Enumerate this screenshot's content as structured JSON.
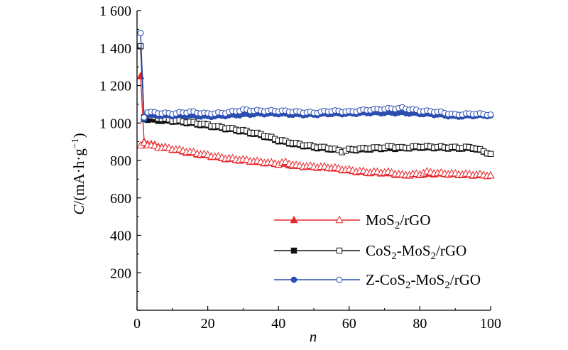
{
  "chart_data": {
    "type": "line",
    "xlabel": "n",
    "ylabel": "C/(mA·h·g⁻¹)",
    "xlim": [
      0,
      100
    ],
    "ylim": [
      0,
      1600
    ],
    "x_ticks": [
      "0",
      "20",
      "40",
      "60",
      "80",
      "100"
    ],
    "y_ticks": [
      "",
      "200",
      "400",
      "600",
      "800",
      "1 000",
      "1 200",
      "1 400",
      "1 600"
    ],
    "grid": false,
    "legend_position": "lower-right",
    "series": [
      {
        "name": "MoS2/rGO",
        "legend_main": "MoS",
        "legend_sub": "2",
        "legend_rest": "/rGO",
        "color": "#e8262b",
        "marker": "triangle",
        "discharge": [
          [
            1,
            1250
          ],
          [
            2,
            900
          ],
          [
            3,
            890
          ],
          [
            5,
            880
          ],
          [
            10,
            860
          ],
          [
            15,
            840
          ],
          [
            20,
            825
          ],
          [
            25,
            810
          ],
          [
            30,
            800
          ],
          [
            35,
            790
          ],
          [
            40,
            780
          ],
          [
            42,
            780
          ],
          [
            45,
            770
          ],
          [
            50,
            765
          ],
          [
            55,
            760
          ],
          [
            60,
            745
          ],
          [
            65,
            735
          ],
          [
            70,
            733
          ],
          [
            72,
            730
          ],
          [
            75,
            720
          ],
          [
            80,
            725
          ],
          [
            85,
            730
          ],
          [
            90,
            725
          ],
          [
            95,
            722
          ],
          [
            100,
            720
          ]
        ],
        "charge": [
          [
            1,
            880
          ],
          [
            2,
            895
          ],
          [
            3,
            885
          ],
          [
            5,
            875
          ],
          [
            10,
            862
          ],
          [
            15,
            845
          ],
          [
            20,
            828
          ],
          [
            25,
            812
          ],
          [
            30,
            803
          ],
          [
            35,
            792
          ],
          [
            40,
            782
          ],
          [
            42,
            790
          ],
          [
            45,
            772
          ],
          [
            50,
            767
          ],
          [
            55,
            762
          ],
          [
            60,
            748
          ],
          [
            65,
            738
          ],
          [
            70,
            737
          ],
          [
            72,
            735
          ],
          [
            75,
            722
          ],
          [
            80,
            728
          ],
          [
            82,
            738
          ],
          [
            85,
            732
          ],
          [
            90,
            728
          ],
          [
            95,
            725
          ],
          [
            100,
            720
          ]
        ]
      },
      {
        "name": "CoS2-MoS2/rGO",
        "legend_parts": [
          "CoS",
          "2",
          "-MoS",
          "2",
          "/rGO"
        ],
        "color": "#111111",
        "marker": "square",
        "discharge": [
          [
            1,
            1410
          ],
          [
            2,
            1020
          ],
          [
            3,
            1020
          ],
          [
            5,
            1015
          ],
          [
            10,
            1010
          ],
          [
            15,
            1000
          ],
          [
            20,
            985
          ],
          [
            25,
            970
          ],
          [
            30,
            955
          ],
          [
            35,
            935
          ],
          [
            40,
            905
          ],
          [
            45,
            885
          ],
          [
            50,
            870
          ],
          [
            55,
            860
          ],
          [
            58,
            850
          ],
          [
            60,
            855
          ],
          [
            65,
            860
          ],
          [
            70,
            865
          ],
          [
            75,
            865
          ],
          [
            80,
            870
          ],
          [
            85,
            868
          ],
          [
            90,
            865
          ],
          [
            95,
            865
          ],
          [
            100,
            835
          ]
        ],
        "charge": [
          [
            1,
            1410
          ],
          [
            2,
            1030
          ],
          [
            3,
            1040
          ],
          [
            5,
            1030
          ],
          [
            10,
            1015
          ],
          [
            15,
            1005
          ],
          [
            20,
            990
          ],
          [
            25,
            975
          ],
          [
            30,
            960
          ],
          [
            35,
            940
          ],
          [
            40,
            910
          ],
          [
            45,
            890
          ],
          [
            50,
            875
          ],
          [
            55,
            865
          ],
          [
            58,
            848
          ],
          [
            60,
            858
          ],
          [
            65,
            865
          ],
          [
            70,
            870
          ],
          [
            72,
            875
          ],
          [
            75,
            868
          ],
          [
            80,
            875
          ],
          [
            85,
            872
          ],
          [
            90,
            870
          ],
          [
            95,
            870
          ],
          [
            100,
            835
          ]
        ]
      },
      {
        "name": "Z-CoS2-MoS2/rGO",
        "legend_parts": [
          "Z-CoS",
          "2",
          "-MoS",
          "2",
          "/rGO"
        ],
        "color": "#2a4db0",
        "marker": "circle",
        "discharge": [
          [
            1,
            1480
          ],
          [
            2,
            1020
          ],
          [
            3,
            1045
          ],
          [
            5,
            1040
          ],
          [
            10,
            1040
          ],
          [
            15,
            1040
          ],
          [
            20,
            1035
          ],
          [
            25,
            1040
          ],
          [
            30,
            1045
          ],
          [
            35,
            1050
          ],
          [
            40,
            1050
          ],
          [
            45,
            1045
          ],
          [
            50,
            1045
          ],
          [
            55,
            1050
          ],
          [
            60,
            1050
          ],
          [
            65,
            1055
          ],
          [
            70,
            1055
          ],
          [
            75,
            1055
          ],
          [
            80,
            1050
          ],
          [
            85,
            1045
          ],
          [
            90,
            1035
          ],
          [
            95,
            1040
          ],
          [
            100,
            1040
          ]
        ],
        "charge": [
          [
            1,
            1480
          ],
          [
            2,
            1030
          ],
          [
            3,
            1060
          ],
          [
            5,
            1055
          ],
          [
            10,
            1050
          ],
          [
            15,
            1060
          ],
          [
            20,
            1050
          ],
          [
            25,
            1055
          ],
          [
            30,
            1070
          ],
          [
            35,
            1065
          ],
          [
            40,
            1065
          ],
          [
            45,
            1060
          ],
          [
            50,
            1055
          ],
          [
            55,
            1065
          ],
          [
            60,
            1060
          ],
          [
            65,
            1070
          ],
          [
            70,
            1075
          ],
          [
            75,
            1080
          ],
          [
            80,
            1065
          ],
          [
            85,
            1060
          ],
          [
            90,
            1045
          ],
          [
            95,
            1050
          ],
          [
            100,
            1045
          ]
        ]
      }
    ]
  }
}
